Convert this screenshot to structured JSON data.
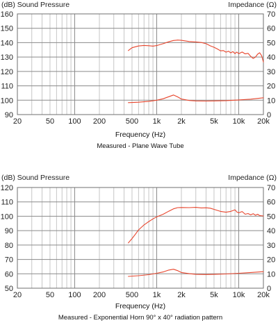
{
  "chart_data": [
    {
      "type": "line",
      "title": "",
      "caption": "Measured - Plane Wave Tube",
      "xlabel": "Frequency (Hz)",
      "ylabel_left": "(dB) Sound Pressure",
      "ylabel_right": "Impedance (Ω)",
      "x_scale": "log",
      "xlim": [
        20,
        20000
      ],
      "ylim_left": [
        90,
        160
      ],
      "ylim_right": [
        0,
        70
      ],
      "x_ticks": [
        20,
        50,
        100,
        200,
        500,
        1000,
        2000,
        5000,
        10000,
        20000
      ],
      "x_tick_labels": [
        "20",
        "50",
        "100",
        "200",
        "500",
        "1k",
        "2k",
        "5k",
        "10k",
        "20k"
      ],
      "y_ticks_left": [
        90,
        100,
        110,
        120,
        130,
        140,
        150,
        160
      ],
      "y_ticks_right": [
        0,
        10,
        20,
        30,
        40,
        50,
        60,
        70
      ],
      "grid": true,
      "series": [
        {
          "axis": "left",
          "color": "#e8452c",
          "points": [
            [
              450,
              134.5
            ],
            [
              500,
              136.5
            ],
            [
              600,
              137.7
            ],
            [
              700,
              138.1
            ],
            [
              800,
              137.9
            ],
            [
              900,
              137.6
            ],
            [
              1000,
              138
            ],
            [
              1200,
              139.3
            ],
            [
              1400,
              140.6
            ],
            [
              1600,
              141.5
            ],
            [
              1800,
              141.8
            ],
            [
              2000,
              141.6
            ],
            [
              2500,
              140.8
            ],
            [
              3000,
              140.5
            ],
            [
              3500,
              140.1
            ],
            [
              4000,
              139.3
            ],
            [
              4500,
              137.8
            ],
            [
              5000,
              136.8
            ],
            [
              5500,
              135.6
            ],
            [
              6000,
              134.3
            ],
            [
              6500,
              134.5
            ],
            [
              7000,
              133.4
            ],
            [
              7500,
              134.1
            ],
            [
              8000,
              132.9
            ],
            [
              8500,
              133.8
            ],
            [
              9000,
              132.4
            ],
            [
              9500,
              133.5
            ],
            [
              10000,
              132.3
            ],
            [
              11000,
              133.5
            ],
            [
              12000,
              132.2
            ],
            [
              13000,
              132.6
            ],
            [
              14000,
              130.5
            ],
            [
              15000,
              129
            ],
            [
              16000,
              130
            ],
            [
              17000,
              132
            ],
            [
              18000,
              133
            ],
            [
              19000,
              131
            ],
            [
              20000,
              126.5
            ]
          ]
        },
        {
          "axis": "right",
          "color": "#e8452c",
          "points": [
            [
              450,
              8.3
            ],
            [
              600,
              8.6
            ],
            [
              800,
              9.2
            ],
            [
              1000,
              10
            ],
            [
              1200,
              11
            ],
            [
              1400,
              12.4
            ],
            [
              1600,
              13.6
            ],
            [
              1800,
              12.3
            ],
            [
              2000,
              10.8
            ],
            [
              2500,
              9.8
            ],
            [
              3000,
              9.5
            ],
            [
              4000,
              9.4
            ],
            [
              5000,
              9.5
            ],
            [
              7000,
              9.7
            ],
            [
              10000,
              10.2
            ],
            [
              14000,
              10.7
            ],
            [
              20000,
              11.7
            ]
          ]
        }
      ]
    },
    {
      "type": "line",
      "title": "",
      "caption": "Measured - Exponential Horn 90° x 40° radiation pattern",
      "xlabel": "Frequency (Hz)",
      "ylabel_left": "(dB) Sound Pressure",
      "ylabel_right": "Impedance (Ω)",
      "x_scale": "log",
      "xlim": [
        20,
        20000
      ],
      "ylim_left": [
        50,
        120
      ],
      "ylim_right": [
        0,
        70
      ],
      "x_ticks": [
        20,
        50,
        100,
        200,
        500,
        1000,
        2000,
        5000,
        10000,
        20000
      ],
      "x_tick_labels": [
        "20",
        "50",
        "100",
        "200",
        "500",
        "1k",
        "2k",
        "5k",
        "10k",
        "20k"
      ],
      "y_ticks_left": [
        50,
        60,
        70,
        80,
        90,
        100,
        110,
        120
      ],
      "y_ticks_right": [
        0,
        10,
        20,
        30,
        40,
        50,
        60,
        70
      ],
      "grid": true,
      "series": [
        {
          "axis": "left",
          "color": "#e8452c",
          "points": [
            [
              450,
              81.5
            ],
            [
              500,
              84.5
            ],
            [
              550,
              87.5
            ],
            [
              600,
              90.5
            ],
            [
              700,
              94
            ],
            [
              800,
              96.3
            ],
            [
              900,
              98.2
            ],
            [
              1000,
              99.6
            ],
            [
              1200,
              101.4
            ],
            [
              1400,
              103.5
            ],
            [
              1600,
              105.2
            ],
            [
              1800,
              106
            ],
            [
              2000,
              106.1
            ],
            [
              2500,
              106
            ],
            [
              3000,
              106.2
            ],
            [
              3500,
              105.8
            ],
            [
              4000,
              105.9
            ],
            [
              4500,
              105.6
            ],
            [
              5000,
              104.8
            ],
            [
              6000,
              103.4
            ],
            [
              7000,
              102.8
            ],
            [
              8000,
              103.4
            ],
            [
              9000,
              104.5
            ],
            [
              9500,
              103
            ],
            [
              10000,
              102.4
            ],
            [
              11000,
              103.3
            ],
            [
              12000,
              101.4
            ],
            [
              13000,
              101.9
            ],
            [
              14000,
              101
            ],
            [
              15000,
              101.8
            ],
            [
              16000,
              100.7
            ],
            [
              17000,
              101.4
            ],
            [
              18000,
              100.5
            ],
            [
              20000,
              100.2
            ]
          ]
        },
        {
          "axis": "right",
          "color": "#e8452c",
          "points": [
            [
              450,
              8.2
            ],
            [
              600,
              8.7
            ],
            [
              800,
              9.4
            ],
            [
              1000,
              10.4
            ],
            [
              1200,
              11.3
            ],
            [
              1400,
              12.6
            ],
            [
              1600,
              13.2
            ],
            [
              1800,
              12.2
            ],
            [
              2000,
              10.9
            ],
            [
              2500,
              10.1
            ],
            [
              3000,
              9.6
            ],
            [
              4000,
              9.5
            ],
            [
              5000,
              9.6
            ],
            [
              7000,
              9.9
            ],
            [
              10000,
              10.4
            ],
            [
              14000,
              10.9
            ],
            [
              20000,
              11.5
            ]
          ]
        }
      ]
    }
  ]
}
